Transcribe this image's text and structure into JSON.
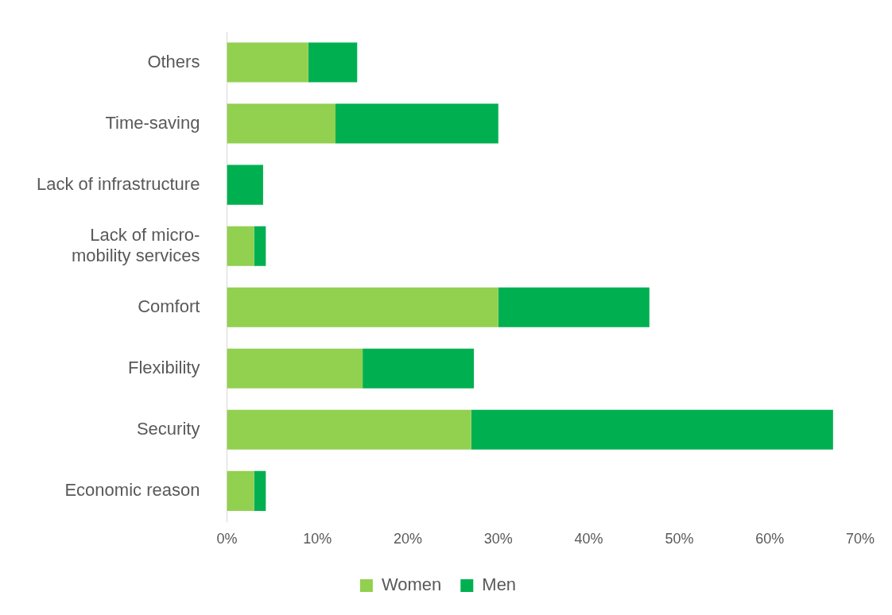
{
  "chart_data": {
    "type": "bar",
    "orientation": "horizontal",
    "stacked": true,
    "categories": [
      "Others",
      "Time-saving",
      "Lack of infrastructure",
      "Lack of micro-mobility services",
      "Comfort",
      "Flexibility",
      "Security",
      "Economic reason"
    ],
    "series": [
      {
        "name": "Women",
        "color": "#92d050",
        "values": [
          9,
          12,
          0,
          3,
          30,
          15,
          27,
          3
        ]
      },
      {
        "name": "Men",
        "color": "#00b050",
        "values": [
          5.4,
          18,
          4,
          1.3,
          16.7,
          12.3,
          40,
          1.3
        ]
      }
    ],
    "xlim": [
      0,
      70
    ],
    "xticks": [
      {
        "value": 0,
        "label": "0%"
      },
      {
        "value": 10,
        "label": "10%"
      },
      {
        "value": 20,
        "label": "20%"
      },
      {
        "value": 30,
        "label": "30%"
      },
      {
        "value": 40,
        "label": "40%"
      },
      {
        "value": 50,
        "label": "50%"
      },
      {
        "value": 60,
        "label": "60%"
      },
      {
        "value": 70,
        "label": "70%"
      }
    ],
    "grid": false,
    "legend": "bottom"
  }
}
